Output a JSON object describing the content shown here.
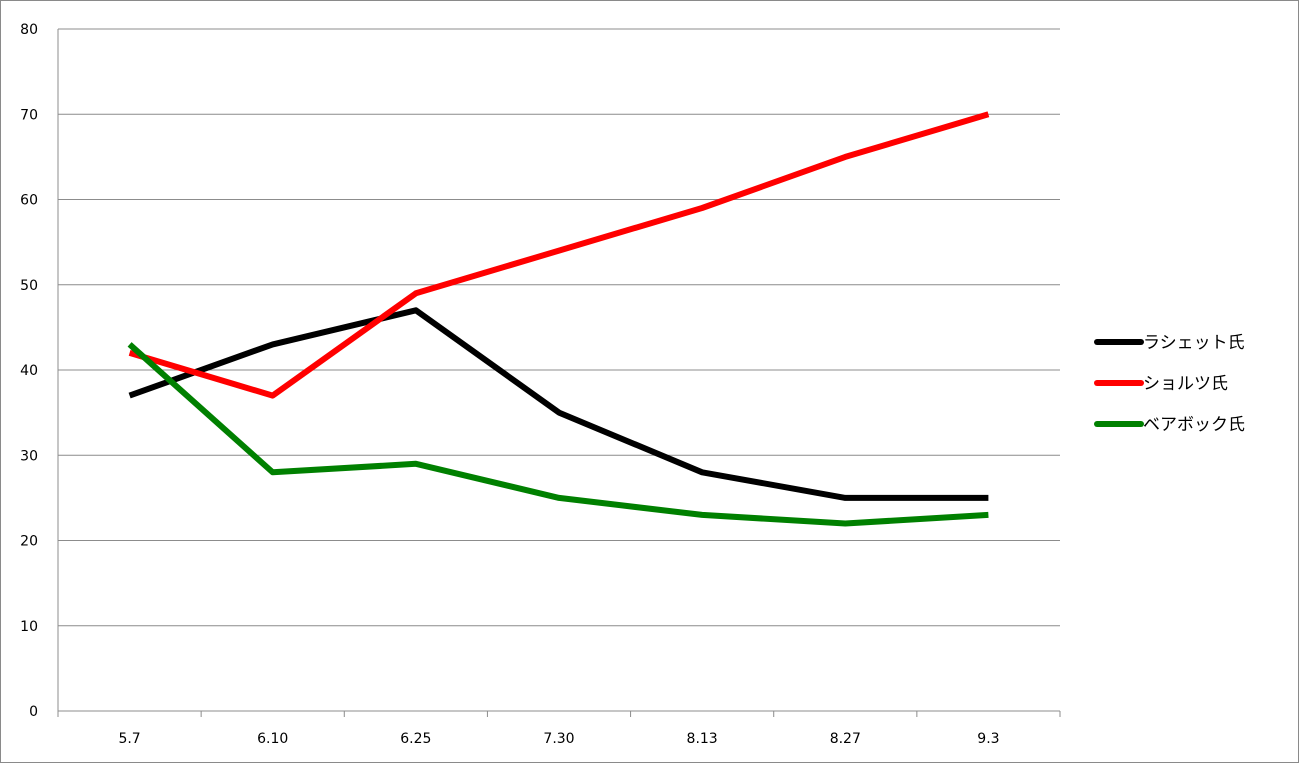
{
  "chart_data": {
    "type": "line",
    "categories": [
      "5.7",
      "6.10",
      "6.25",
      "7.30",
      "8.13",
      "8.27",
      "9.3"
    ],
    "ylim": [
      0,
      80
    ],
    "yticks": [
      0,
      10,
      20,
      30,
      40,
      50,
      60,
      70,
      80
    ],
    "grid": true,
    "legend_position": "right",
    "series": [
      {
        "name": "ラシェット氏",
        "color": "#000000",
        "values": [
          37,
          43,
          47,
          35,
          28,
          25,
          25
        ]
      },
      {
        "name": "ショルツ氏",
        "color": "#ff0000",
        "values": [
          42,
          37,
          49,
          54,
          59,
          65,
          70
        ]
      },
      {
        "name": "ベアボック氏",
        "color": "#008000",
        "values": [
          43,
          28,
          29,
          25,
          23,
          22,
          23
        ]
      }
    ]
  }
}
